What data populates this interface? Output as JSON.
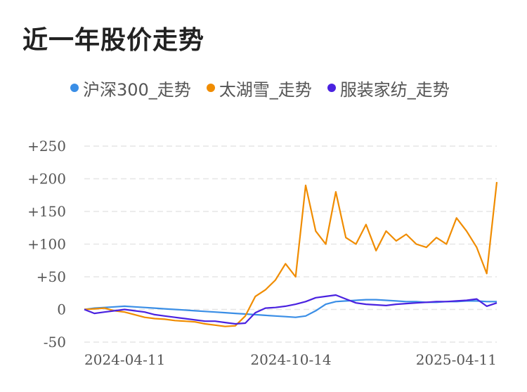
{
  "title": "近一年股价走势",
  "legend": [
    {
      "label": "沪深300_走势",
      "color": "#3a8ee6"
    },
    {
      "label": "太湖雪_走势",
      "color": "#f08c00"
    },
    {
      "label": "服装家纺_走势",
      "color": "#4a22e0"
    }
  ],
  "chart_data": {
    "type": "line",
    "title": "近一年股价走势",
    "ylim": [
      -50,
      250
    ],
    "y_ticks": [
      "+250",
      "+200",
      "+150",
      "+100",
      "+50",
      "0",
      "-50"
    ],
    "y_tick_values": [
      250,
      200,
      150,
      100,
      50,
      0,
      -50
    ],
    "x_ticks": [
      "2024-04-11",
      "2024-10-14",
      "2025-04-11"
    ],
    "grid": true,
    "legend_position": "top",
    "series": [
      {
        "name": "沪深300_走势",
        "color": "#3a8ee6",
        "values": [
          0,
          2,
          3,
          4,
          5,
          4,
          3,
          2,
          1,
          0,
          -1,
          -2,
          -3,
          -4,
          -5,
          -6,
          -7,
          -8,
          -9,
          -10,
          -11,
          -12,
          -10,
          -2,
          8,
          12,
          13,
          14,
          15,
          15,
          14,
          13,
          12,
          12,
          11,
          11,
          12,
          12,
          13,
          13,
          12,
          12
        ]
      },
      {
        "name": "太湖雪_走势",
        "color": "#f08c00",
        "values": [
          0,
          1,
          2,
          -2,
          -4,
          -8,
          -12,
          -14,
          -15,
          -17,
          -18,
          -19,
          -22,
          -24,
          -26,
          -25,
          -10,
          20,
          30,
          45,
          70,
          50,
          190,
          120,
          100,
          180,
          110,
          100,
          130,
          90,
          120,
          105,
          115,
          100,
          95,
          110,
          100,
          140,
          120,
          95,
          55,
          195
        ]
      },
      {
        "name": "服装家纺_走势",
        "color": "#4a22e0",
        "values": [
          0,
          -6,
          -4,
          -2,
          0,
          -2,
          -4,
          -8,
          -10,
          -12,
          -14,
          -16,
          -18,
          -18,
          -20,
          -22,
          -21,
          -5,
          2,
          3,
          5,
          8,
          12,
          18,
          20,
          22,
          16,
          10,
          8,
          7,
          6,
          8,
          9,
          10,
          11,
          12,
          12,
          13,
          14,
          16,
          5,
          10
        ]
      }
    ]
  }
}
